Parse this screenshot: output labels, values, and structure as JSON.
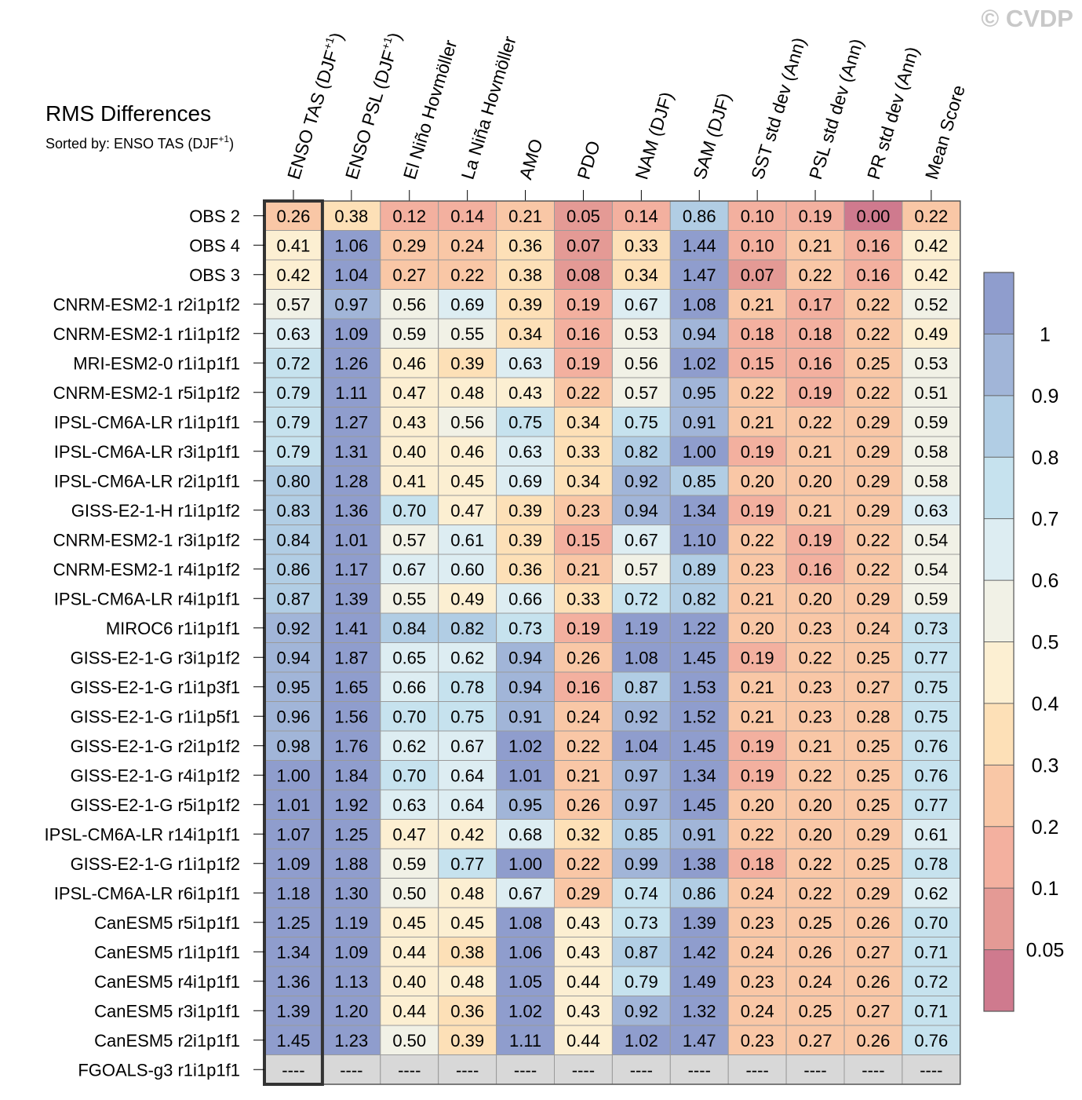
{
  "watermark": "© CVDP",
  "chart_data": {
    "type": "heatmap",
    "title": "RMS Differences",
    "subtitle": "Sorted by: ENSO TAS (DJF",
    "subtitle_sup": "+1",
    "subtitle_close": ")",
    "columns": [
      {
        "label": "ENSO TAS (DJF",
        "sup": "+1",
        "close": ")"
      },
      {
        "label": "ENSO PSL (DJF",
        "sup": "+1",
        "close": ")"
      },
      {
        "label": "El Niño Hovmöller"
      },
      {
        "label": "La Niña Hovmöller"
      },
      {
        "label": "AMO"
      },
      {
        "label": "PDO"
      },
      {
        "label": "NAM (DJF)"
      },
      {
        "label": "SAM (DJF)"
      },
      {
        "label": "SST std dev (Ann)"
      },
      {
        "label": "PSL std dev (Ann)"
      },
      {
        "label": "PR std dev (Ann)"
      },
      {
        "label": "Mean Score"
      }
    ],
    "rows": [
      "OBS 2",
      "OBS 4",
      "OBS 3",
      "CNRM-ESM2-1 r2i1p1f2",
      "CNRM-ESM2-1 r1i1p1f2",
      "MRI-ESM2-0 r1i1p1f1",
      "CNRM-ESM2-1 r5i1p1f2",
      "IPSL-CM6A-LR r1i1p1f1",
      "IPSL-CM6A-LR r3i1p1f1",
      "IPSL-CM6A-LR r2i1p1f1",
      "GISS-E2-1-H r1i1p1f2",
      "CNRM-ESM2-1 r3i1p1f2",
      "CNRM-ESM2-1 r4i1p1f2",
      "IPSL-CM6A-LR r4i1p1f1",
      "MIROC6 r1i1p1f1",
      "GISS-E2-1-G r3i1p1f2",
      "GISS-E2-1-G r1i1p3f1",
      "GISS-E2-1-G r1i1p5f1",
      "GISS-E2-1-G r2i1p1f2",
      "GISS-E2-1-G r4i1p1f2",
      "GISS-E2-1-G r5i1p1f2",
      "IPSL-CM6A-LR r14i1p1f1",
      "GISS-E2-1-G r1i1p1f2",
      "IPSL-CM6A-LR r6i1p1f1",
      "CanESM5 r5i1p1f1",
      "CanESM5 r1i1p1f1",
      "CanESM5 r4i1p1f1",
      "CanESM5 r3i1p1f1",
      "CanESM5 r2i1p1f1",
      "FGOALS-g3 r1i1p1f1"
    ],
    "values": [
      [
        0.26,
        0.38,
        0.12,
        0.14,
        0.21,
        0.05,
        0.14,
        0.86,
        0.1,
        0.19,
        0.0,
        0.22
      ],
      [
        0.41,
        1.06,
        0.29,
        0.24,
        0.36,
        0.07,
        0.33,
        1.44,
        0.1,
        0.21,
        0.16,
        0.42
      ],
      [
        0.42,
        1.04,
        0.27,
        0.22,
        0.38,
        0.08,
        0.34,
        1.47,
        0.07,
        0.22,
        0.16,
        0.42
      ],
      [
        0.57,
        0.97,
        0.56,
        0.69,
        0.39,
        0.19,
        0.67,
        1.08,
        0.21,
        0.17,
        0.22,
        0.52
      ],
      [
        0.63,
        1.09,
        0.59,
        0.55,
        0.34,
        0.16,
        0.53,
        0.94,
        0.18,
        0.18,
        0.22,
        0.49
      ],
      [
        0.72,
        1.26,
        0.46,
        0.39,
        0.63,
        0.19,
        0.56,
        1.02,
        0.15,
        0.16,
        0.25,
        0.53
      ],
      [
        0.79,
        1.11,
        0.47,
        0.48,
        0.43,
        0.22,
        0.57,
        0.95,
        0.22,
        0.19,
        0.22,
        0.51
      ],
      [
        0.79,
        1.27,
        0.43,
        0.56,
        0.75,
        0.34,
        0.75,
        0.91,
        0.21,
        0.22,
        0.29,
        0.59
      ],
      [
        0.79,
        1.31,
        0.4,
        0.46,
        0.63,
        0.33,
        0.82,
        1.0,
        0.19,
        0.21,
        0.29,
        0.58
      ],
      [
        0.8,
        1.28,
        0.41,
        0.45,
        0.69,
        0.34,
        0.92,
        0.85,
        0.2,
        0.2,
        0.29,
        0.58
      ],
      [
        0.83,
        1.36,
        0.7,
        0.47,
        0.39,
        0.23,
        0.94,
        1.34,
        0.19,
        0.21,
        0.29,
        0.63
      ],
      [
        0.84,
        1.01,
        0.57,
        0.61,
        0.39,
        0.15,
        0.67,
        1.1,
        0.22,
        0.19,
        0.22,
        0.54
      ],
      [
        0.86,
        1.17,
        0.67,
        0.6,
        0.36,
        0.21,
        0.57,
        0.89,
        0.23,
        0.16,
        0.22,
        0.54
      ],
      [
        0.87,
        1.39,
        0.55,
        0.49,
        0.66,
        0.33,
        0.72,
        0.82,
        0.21,
        0.2,
        0.29,
        0.59
      ],
      [
        0.92,
        1.41,
        0.84,
        0.82,
        0.73,
        0.19,
        1.19,
        1.22,
        0.2,
        0.23,
        0.24,
        0.73
      ],
      [
        0.94,
        1.87,
        0.65,
        0.62,
        0.94,
        0.26,
        1.08,
        1.45,
        0.19,
        0.22,
        0.25,
        0.77
      ],
      [
        0.95,
        1.65,
        0.66,
        0.78,
        0.94,
        0.16,
        0.87,
        1.53,
        0.21,
        0.23,
        0.27,
        0.75
      ],
      [
        0.96,
        1.56,
        0.7,
        0.75,
        0.91,
        0.24,
        0.92,
        1.52,
        0.21,
        0.23,
        0.28,
        0.75
      ],
      [
        0.98,
        1.76,
        0.62,
        0.67,
        1.02,
        0.22,
        1.04,
        1.45,
        0.19,
        0.21,
        0.25,
        0.76
      ],
      [
        1.0,
        1.84,
        0.7,
        0.64,
        1.01,
        0.21,
        0.97,
        1.34,
        0.19,
        0.22,
        0.25,
        0.76
      ],
      [
        1.01,
        1.92,
        0.63,
        0.64,
        0.95,
        0.26,
        0.97,
        1.45,
        0.2,
        0.2,
        0.25,
        0.77
      ],
      [
        1.07,
        1.25,
        0.47,
        0.42,
        0.68,
        0.32,
        0.85,
        0.91,
        0.22,
        0.2,
        0.29,
        0.61
      ],
      [
        1.09,
        1.88,
        0.59,
        0.77,
        1.0,
        0.22,
        0.99,
        1.38,
        0.18,
        0.22,
        0.25,
        0.78
      ],
      [
        1.18,
        1.3,
        0.5,
        0.48,
        0.67,
        0.29,
        0.74,
        0.86,
        0.24,
        0.22,
        0.29,
        0.62
      ],
      [
        1.25,
        1.19,
        0.45,
        0.45,
        1.08,
        0.43,
        0.73,
        1.39,
        0.23,
        0.25,
        0.26,
        0.7
      ],
      [
        1.34,
        1.09,
        0.44,
        0.38,
        1.06,
        0.43,
        0.87,
        1.42,
        0.24,
        0.26,
        0.27,
        0.71
      ],
      [
        1.36,
        1.13,
        0.4,
        0.48,
        1.05,
        0.44,
        0.79,
        1.49,
        0.23,
        0.24,
        0.26,
        0.72
      ],
      [
        1.39,
        1.2,
        0.44,
        0.36,
        1.02,
        0.43,
        0.92,
        1.32,
        0.24,
        0.25,
        0.27,
        0.71
      ],
      [
        1.45,
        1.23,
        0.5,
        0.39,
        1.11,
        0.44,
        1.02,
        1.47,
        0.23,
        0.27,
        0.26,
        0.76
      ],
      [
        null,
        null,
        null,
        null,
        null,
        null,
        null,
        null,
        null,
        null,
        null,
        null
      ]
    ],
    "missing_label": "----",
    "highlighted_column": 0,
    "colorbar": {
      "levels": [
        0.05,
        0.1,
        0.2,
        0.3,
        0.4,
        0.5,
        0.6,
        0.7,
        0.8,
        0.9,
        1
      ],
      "tick_labels": [
        "0.05",
        "0.1",
        "0.2",
        "0.3",
        "0.4",
        "0.5",
        "0.6",
        "0.7",
        "0.8",
        "0.9",
        "1"
      ],
      "colors": [
        "#cf7a8e",
        "#e49a95",
        "#f3b09f",
        "#f9c7a6",
        "#fde0b7",
        "#fcefd2",
        "#f1f1e6",
        "#ddedf2",
        "#c6e2ee",
        "#b1cde4",
        "#a1b5d8",
        "#8f9dcd"
      ],
      "missing_color": "#d8d8d8",
      "placement": "right"
    }
  }
}
